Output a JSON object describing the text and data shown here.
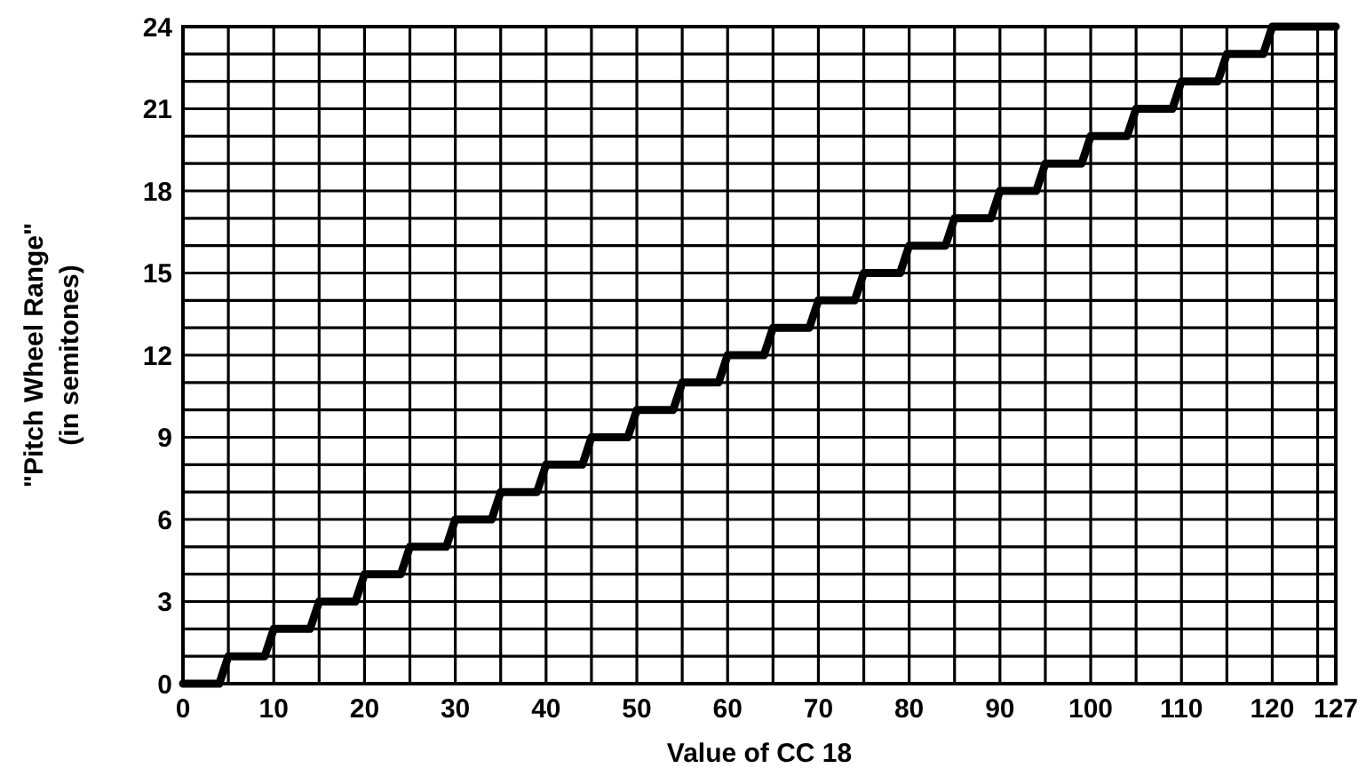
{
  "chart_data": {
    "type": "line",
    "xlabel": "Value of CC 18",
    "ylabel": "\"Pitch Wheel Range\"\n(in semitones)",
    "x": [
      0,
      4,
      5,
      9,
      10,
      14,
      15,
      19,
      20,
      24,
      25,
      29,
      30,
      34,
      35,
      39,
      40,
      44,
      45,
      49,
      50,
      54,
      55,
      59,
      60,
      64,
      65,
      69,
      70,
      74,
      75,
      79,
      80,
      84,
      85,
      89,
      90,
      94,
      95,
      99,
      100,
      104,
      105,
      109,
      110,
      114,
      115,
      119,
      120,
      127
    ],
    "series": [
      {
        "color": "#000000",
        "values": [
          0,
          0,
          1,
          1,
          2,
          2,
          3,
          3,
          4,
          4,
          5,
          5,
          6,
          6,
          7,
          7,
          8,
          8,
          9,
          9,
          10,
          10,
          11,
          11,
          12,
          12,
          13,
          13,
          14,
          14,
          15,
          15,
          16,
          16,
          17,
          17,
          18,
          18,
          19,
          19,
          20,
          20,
          21,
          21,
          22,
          22,
          23,
          23,
          24,
          24
        ]
      }
    ],
    "xlim": [
      0,
      127
    ],
    "ylim": [
      0,
      24
    ],
    "xticks": [
      0,
      {
        "value": 5,
        "label": null
      },
      10,
      {
        "value": 15,
        "label": null
      },
      20,
      {
        "value": 25,
        "label": null
      },
      30,
      {
        "value": 35,
        "label": null
      },
      40,
      {
        "value": 45,
        "label": null
      },
      50,
      {
        "value": 55,
        "label": null
      },
      60,
      {
        "value": 65,
        "label": null
      },
      70,
      {
        "value": 75,
        "label": null
      },
      80,
      {
        "value": 85,
        "label": null
      },
      90,
      {
        "value": 95,
        "label": null
      },
      100,
      {
        "value": 105,
        "label": null
      },
      110,
      {
        "value": 115,
        "label": null
      },
      120,
      {
        "value": 125,
        "label": null
      },
      127
    ],
    "yticks": [
      0,
      {
        "value": 1,
        "label": null
      },
      {
        "value": 2,
        "label": null
      },
      3,
      {
        "value": 4,
        "label": null
      },
      {
        "value": 5,
        "label": null
      },
      6,
      {
        "value": 7,
        "label": null
      },
      {
        "value": 8,
        "label": null
      },
      9,
      {
        "value": 10,
        "label": null
      },
      {
        "value": 11,
        "label": null
      },
      12,
      {
        "value": 13,
        "label": null
      },
      {
        "value": 14,
        "label": null
      },
      15,
      {
        "value": 16,
        "label": null
      },
      {
        "value": 17,
        "label": null
      },
      18,
      {
        "value": 19,
        "label": null
      },
      {
        "value": 20,
        "label": null
      },
      21,
      {
        "value": 22,
        "label": null
      },
      {
        "value": 23,
        "label": null
      },
      24
    ],
    "grid": true,
    "marker": "none",
    "line_style": "solid"
  }
}
